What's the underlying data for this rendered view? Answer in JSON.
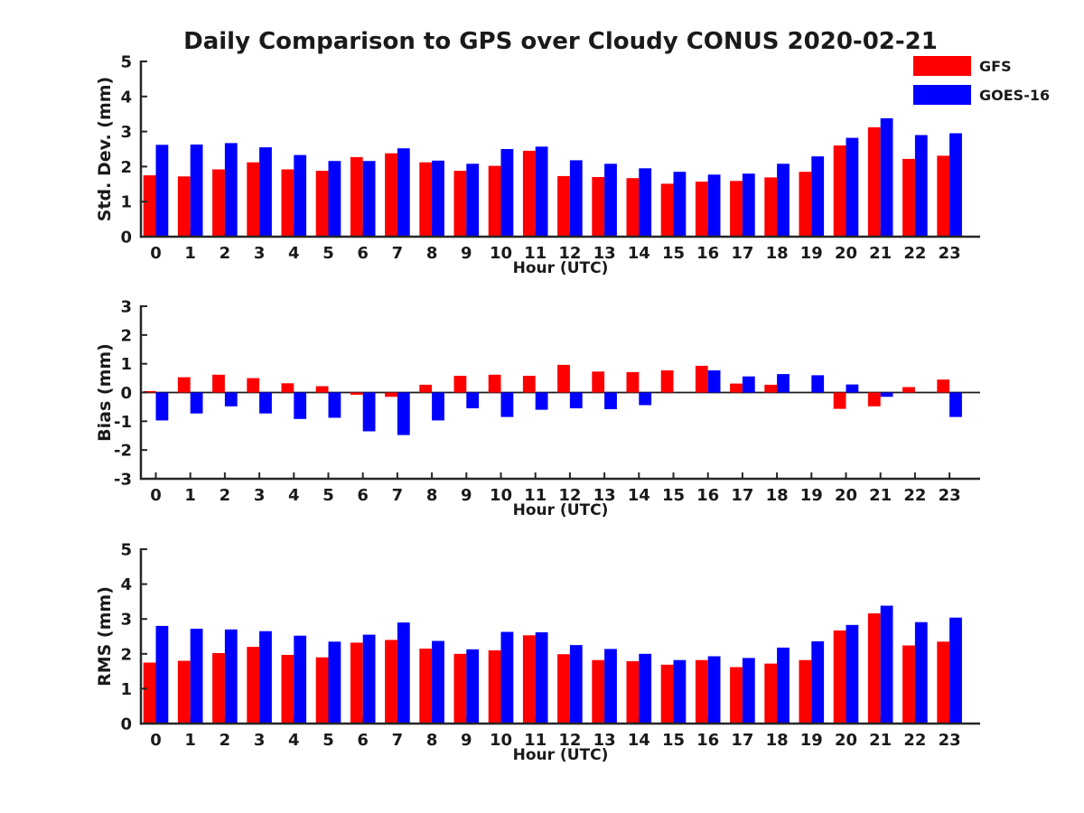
{
  "figure": {
    "title": "Daily Comparison to GPS over Cloudy CONUS 2020-02-21"
  },
  "legend": {
    "items": [
      {
        "label": "GFS",
        "color": "#ff0000"
      },
      {
        "label": "GOES-16",
        "color": "#0000ff"
      }
    ]
  },
  "chart_data": [
    {
      "type": "bar",
      "name": "std-dev",
      "ylabel": "Std. Dev. (mm)",
      "xlabel": "Hour (UTC)",
      "ylim": [
        0,
        5
      ],
      "yticks": [
        0,
        1,
        2,
        3,
        4,
        5
      ],
      "grid": false,
      "legend_position": "upper-right-outside",
      "categories": [
        "0",
        "1",
        "2",
        "3",
        "4",
        "5",
        "6",
        "7",
        "8",
        "9",
        "10",
        "11",
        "12",
        "13",
        "14",
        "15",
        "16",
        "17",
        "18",
        "19",
        "20",
        "21",
        "22",
        "23"
      ],
      "series": [
        {
          "name": "GFS",
          "color": "#ff0000",
          "values": [
            1.75,
            1.72,
            1.92,
            2.12,
            1.92,
            1.88,
            2.27,
            2.38,
            2.12,
            1.88,
            2.02,
            2.45,
            1.73,
            1.7,
            1.67,
            1.51,
            1.57,
            1.59,
            1.69,
            1.85,
            2.6,
            3.12,
            2.22,
            2.31
          ]
        },
        {
          "name": "GOES-16",
          "color": "#0000ff",
          "values": [
            2.62,
            2.63,
            2.67,
            2.55,
            2.33,
            2.16,
            2.16,
            2.52,
            2.17,
            2.08,
            2.5,
            2.57,
            2.18,
            2.08,
            1.95,
            1.85,
            1.77,
            1.8,
            2.08,
            2.29,
            2.82,
            3.38,
            2.9,
            2.95
          ]
        }
      ]
    },
    {
      "type": "bar",
      "name": "bias",
      "ylabel": "Bias (mm)",
      "xlabel": "Hour (UTC)",
      "ylim": [
        -3,
        3
      ],
      "yticks": [
        -3,
        -2,
        -1,
        0,
        1,
        2,
        3
      ],
      "zero_line": true,
      "grid": false,
      "categories": [
        "0",
        "1",
        "2",
        "3",
        "4",
        "5",
        "6",
        "7",
        "8",
        "9",
        "10",
        "11",
        "12",
        "13",
        "14",
        "15",
        "16",
        "17",
        "18",
        "19",
        "20",
        "21",
        "22",
        "23"
      ],
      "series": [
        {
          "name": "GFS",
          "color": "#ff0000",
          "values": [
            0.05,
            0.53,
            0.62,
            0.5,
            0.32,
            0.22,
            -0.08,
            -0.15,
            0.27,
            0.58,
            0.62,
            0.58,
            0.96,
            0.73,
            0.71,
            0.77,
            0.93,
            0.31,
            0.27,
            0.0,
            -0.57,
            -0.48,
            0.19,
            0.45
          ]
        },
        {
          "name": "GOES-16",
          "color": "#0000ff",
          "values": [
            -0.97,
            -0.73,
            -0.48,
            -0.73,
            -0.92,
            -0.88,
            -1.35,
            -1.48,
            -0.97,
            -0.55,
            -0.85,
            -0.6,
            -0.55,
            -0.58,
            -0.44,
            0.0,
            0.77,
            0.56,
            0.64,
            0.6,
            0.28,
            -0.15,
            0.0,
            -0.85
          ]
        }
      ]
    },
    {
      "type": "bar",
      "name": "rms",
      "ylabel": "RMS (mm)",
      "xlabel": "Hour (UTC)",
      "ylim": [
        0,
        5
      ],
      "yticks": [
        0,
        1,
        2,
        3,
        4,
        5
      ],
      "grid": false,
      "categories": [
        "0",
        "1",
        "2",
        "3",
        "4",
        "5",
        "6",
        "7",
        "8",
        "9",
        "10",
        "11",
        "12",
        "13",
        "14",
        "15",
        "16",
        "17",
        "18",
        "19",
        "20",
        "21",
        "22",
        "23"
      ],
      "series": [
        {
          "name": "GFS",
          "color": "#ff0000",
          "values": [
            1.75,
            1.8,
            2.02,
            2.2,
            1.97,
            1.9,
            2.32,
            2.4,
            2.15,
            2.0,
            2.1,
            2.53,
            1.99,
            1.82,
            1.79,
            1.69,
            1.82,
            1.62,
            1.72,
            1.82,
            2.67,
            3.16,
            2.24,
            2.35
          ]
        },
        {
          "name": "GOES-16",
          "color": "#0000ff",
          "values": [
            2.8,
            2.72,
            2.7,
            2.65,
            2.52,
            2.35,
            2.55,
            2.9,
            2.37,
            2.13,
            2.63,
            2.62,
            2.25,
            2.14,
            2.0,
            1.82,
            1.93,
            1.88,
            2.18,
            2.36,
            2.83,
            3.38,
            2.91,
            3.04
          ]
        }
      ]
    }
  ]
}
